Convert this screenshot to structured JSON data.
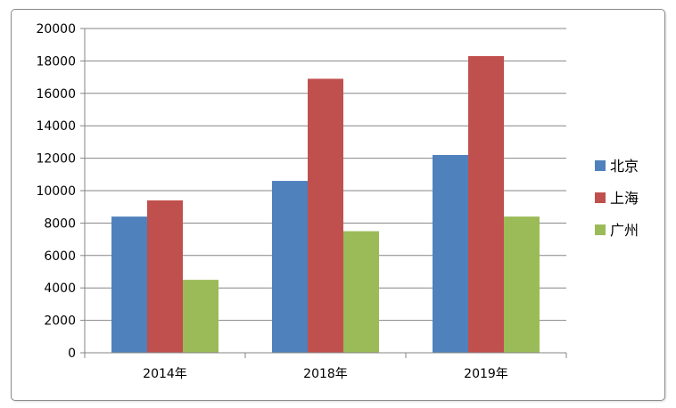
{
  "chart_data": {
    "type": "bar",
    "title": "",
    "xlabel": "",
    "ylabel": "",
    "categories": [
      "2014年",
      "2018年",
      "2019年"
    ],
    "series": [
      {
        "name": "北京",
        "color": "#4f81bd",
        "values": [
          8400,
          10600,
          12200
        ]
      },
      {
        "name": "上海",
        "color": "#c0504d",
        "values": [
          9400,
          16900,
          18300
        ]
      },
      {
        "name": "广州",
        "color": "#9bbb59",
        "values": [
          4500,
          7500,
          8400
        ]
      }
    ],
    "ylim": [
      0,
      20000
    ],
    "yticks": [
      0,
      2000,
      4000,
      6000,
      8000,
      10000,
      12000,
      14000,
      16000,
      18000,
      20000
    ],
    "grid": true,
    "legend_position": "right"
  }
}
